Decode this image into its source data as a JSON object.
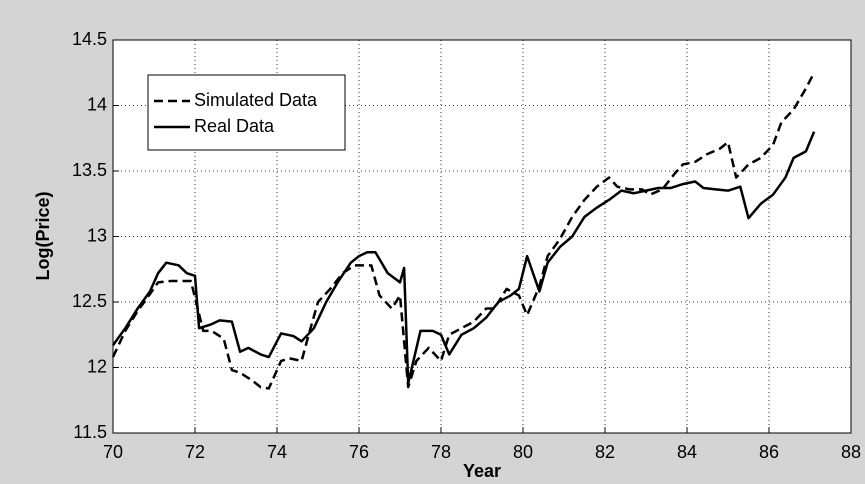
{
  "chart_data": {
    "type": "line",
    "xlabel": "Year",
    "ylabel": "Log(Price)",
    "xlim": [
      70,
      88
    ],
    "ylim": [
      11.5,
      14.5
    ],
    "xticks": [
      70,
      72,
      74,
      76,
      78,
      80,
      82,
      84,
      86,
      88
    ],
    "yticks": [
      11.5,
      12,
      12.5,
      13,
      13.5,
      14,
      14.5
    ],
    "grid": true,
    "legend": "upper left",
    "series": [
      {
        "name": "Simulated Data",
        "color": "#000000",
        "style": "dashed",
        "x": [
          70.0,
          70.3,
          70.6,
          70.9,
          71.1,
          71.4,
          71.7,
          71.9,
          72.2,
          72.4,
          72.7,
          72.9,
          73.1,
          73.4,
          73.6,
          73.8,
          74.1,
          74.3,
          74.6,
          74.8,
          75.0,
          75.3,
          75.6,
          75.9,
          76.1,
          76.3,
          76.5,
          76.8,
          77.0,
          77.2,
          77.4,
          77.7,
          78.0,
          78.2,
          78.5,
          78.8,
          79.1,
          79.3,
          79.6,
          79.9,
          80.1,
          80.4,
          80.6,
          80.9,
          81.2,
          81.5,
          81.8,
          82.1,
          82.3,
          82.6,
          82.9,
          83.1,
          83.4,
          83.7,
          83.9,
          84.2,
          84.5,
          84.8,
          85.0,
          85.2,
          85.5,
          85.8,
          86.1,
          86.3,
          86.6,
          86.9,
          87.1
        ],
        "values": [
          12.08,
          12.28,
          12.43,
          12.56,
          12.65,
          12.66,
          12.66,
          12.66,
          12.28,
          12.28,
          12.22,
          11.98,
          11.96,
          11.9,
          11.85,
          11.84,
          12.05,
          12.07,
          12.05,
          12.28,
          12.5,
          12.6,
          12.72,
          12.78,
          12.78,
          12.78,
          12.55,
          12.45,
          12.55,
          11.85,
          12.05,
          12.15,
          12.05,
          12.25,
          12.3,
          12.35,
          12.45,
          12.45,
          12.6,
          12.55,
          12.4,
          12.62,
          12.85,
          12.98,
          13.15,
          13.28,
          13.38,
          13.45,
          13.38,
          13.36,
          13.36,
          13.32,
          13.36,
          13.48,
          13.55,
          13.57,
          13.63,
          13.67,
          13.72,
          13.45,
          13.55,
          13.6,
          13.7,
          13.87,
          13.97,
          14.13,
          14.25
        ]
      },
      {
        "name": "Real Data",
        "color": "#000000",
        "style": "solid",
        "x": [
          70.0,
          70.3,
          70.6,
          70.9,
          71.1,
          71.3,
          71.6,
          71.8,
          72.0,
          72.1,
          72.4,
          72.6,
          72.9,
          73.1,
          73.3,
          73.6,
          73.8,
          74.1,
          74.4,
          74.6,
          74.9,
          75.2,
          75.5,
          75.8,
          76.0,
          76.2,
          76.4,
          76.7,
          77.0,
          77.1,
          77.2,
          77.5,
          77.8,
          78.0,
          78.2,
          78.5,
          78.8,
          79.1,
          79.4,
          79.7,
          79.9,
          80.1,
          80.4,
          80.6,
          80.9,
          81.2,
          81.5,
          81.8,
          82.1,
          82.4,
          82.7,
          83.0,
          83.3,
          83.6,
          83.9,
          84.2,
          84.4,
          84.7,
          85.0,
          85.3,
          85.5,
          85.8,
          86.1,
          86.4,
          86.6,
          86.9,
          87.1
        ],
        "values": [
          12.17,
          12.3,
          12.45,
          12.58,
          12.72,
          12.8,
          12.78,
          12.72,
          12.7,
          12.3,
          12.33,
          12.36,
          12.35,
          12.12,
          12.15,
          12.1,
          12.08,
          12.26,
          12.24,
          12.2,
          12.3,
          12.5,
          12.66,
          12.8,
          12.85,
          12.88,
          12.88,
          12.72,
          12.65,
          12.76,
          11.88,
          12.28,
          12.28,
          12.25,
          12.1,
          12.25,
          12.3,
          12.38,
          12.5,
          12.55,
          12.6,
          12.85,
          12.58,
          12.8,
          12.92,
          13.0,
          13.15,
          13.22,
          13.28,
          13.35,
          13.33,
          13.35,
          13.37,
          13.37,
          13.4,
          13.42,
          13.37,
          13.36,
          13.35,
          13.38,
          13.14,
          13.25,
          13.32,
          13.45,
          13.6,
          13.65,
          13.8
        ]
      }
    ]
  }
}
